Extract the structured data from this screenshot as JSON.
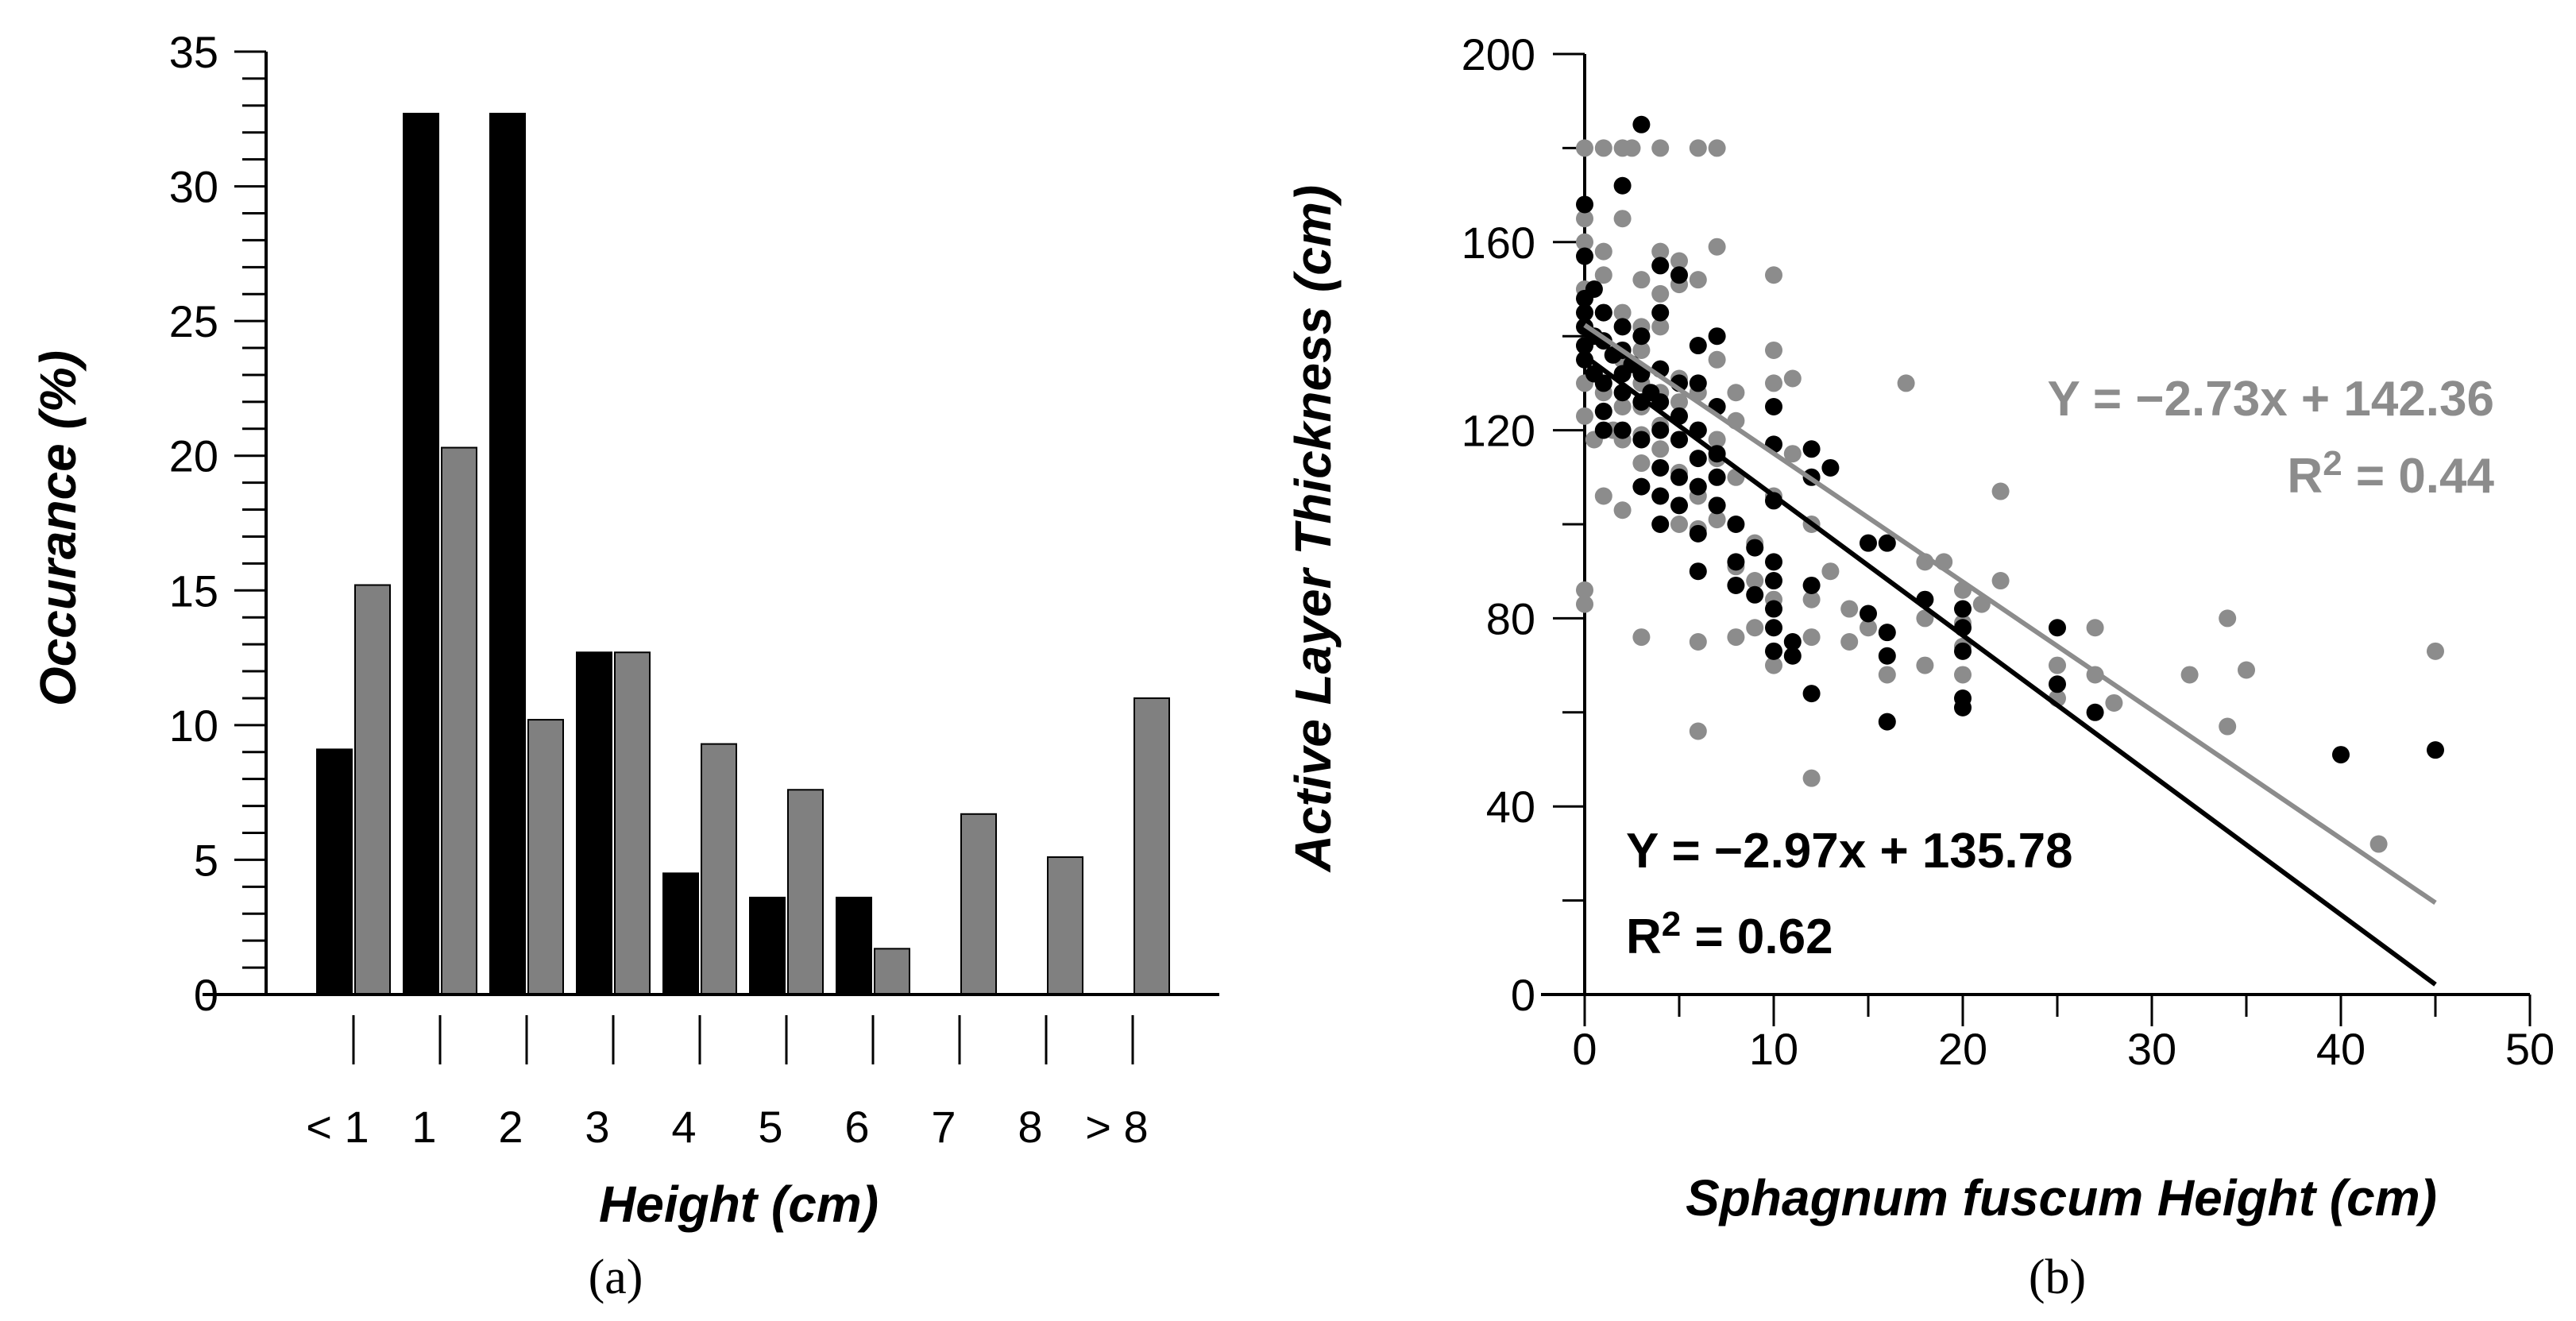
{
  "chart_data": [
    {
      "type": "bar",
      "panel_label": "(a)",
      "xlabel": "Height (cm)",
      "ylabel": "Occurance (%)",
      "ylim": [
        0,
        35
      ],
      "y_ticks": [
        "0",
        "5",
        "10",
        "15",
        "20",
        "25",
        "30",
        "35"
      ],
      "categories": [
        "< 1",
        "1",
        "2",
        "3",
        "4",
        "5",
        "6",
        "7",
        "8",
        "> 8"
      ],
      "series": [
        {
          "name": "series-black",
          "color": "#000000",
          "values": [
            9.1,
            32.7,
            32.7,
            12.7,
            4.5,
            3.6,
            3.6,
            0,
            0,
            0
          ]
        },
        {
          "name": "series-gray",
          "color": "#808080",
          "values": [
            15.2,
            20.3,
            10.2,
            12.7,
            9.3,
            7.6,
            1.7,
            6.7,
            5.1,
            11.0
          ]
        }
      ]
    },
    {
      "type": "scatter",
      "panel_label": "(b)",
      "xlabel": "Sphagnum fuscum Height (cm)",
      "ylabel": "Active Layer Thickness (cm)",
      "xlim": [
        0,
        50
      ],
      "ylim": [
        0,
        200
      ],
      "x_ticks": [
        "0",
        "10",
        "20",
        "30",
        "40",
        "50"
      ],
      "y_ticks": [
        "0",
        "40",
        "80",
        "120",
        "160",
        "200"
      ],
      "series": [
        {
          "name": "black",
          "color": "#000000",
          "equation": "Y = −2.97x + 135.78",
          "r2_prefix": "R",
          "r2_exp": "2",
          "r2_value": " = 0.62",
          "fit": {
            "slope": -2.97,
            "intercept": 135.78,
            "x_range": [
              0,
              45
            ]
          },
          "points": [
            [
              0,
              168
            ],
            [
              0,
              157
            ],
            [
              0,
              148
            ],
            [
              0,
              145
            ],
            [
              0,
              142
            ],
            [
              0,
              138
            ],
            [
              0,
              135
            ],
            [
              0.5,
              150
            ],
            [
              0.5,
              140
            ],
            [
              0.5,
              132
            ],
            [
              1,
              145
            ],
            [
              1,
              139
            ],
            [
              1,
              130
            ],
            [
              1,
              124
            ],
            [
              1,
              120
            ],
            [
              1.5,
              136
            ],
            [
              2,
              172
            ],
            [
              2,
              142
            ],
            [
              2,
              137
            ],
            [
              2,
              132
            ],
            [
              2,
              128
            ],
            [
              2,
              120
            ],
            [
              2.5,
              134
            ],
            [
              3,
              185
            ],
            [
              3,
              140
            ],
            [
              3,
              132
            ],
            [
              3,
              126
            ],
            [
              3,
              118
            ],
            [
              3,
              108
            ],
            [
              3.5,
              128
            ],
            [
              4,
              155
            ],
            [
              4,
              145
            ],
            [
              4,
              133
            ],
            [
              4,
              126
            ],
            [
              4,
              120
            ],
            [
              4,
              112
            ],
            [
              4,
              106
            ],
            [
              4,
              100
            ],
            [
              5,
              153
            ],
            [
              5,
              130
            ],
            [
              5,
              123
            ],
            [
              5,
              118
            ],
            [
              5,
              110
            ],
            [
              5,
              104
            ],
            [
              6,
              138
            ],
            [
              6,
              130
            ],
            [
              6,
              120
            ],
            [
              6,
              114
            ],
            [
              6,
              108
            ],
            [
              6,
              98
            ],
            [
              6,
              90
            ],
            [
              7,
              140
            ],
            [
              7,
              125
            ],
            [
              7,
              115
            ],
            [
              7,
              110
            ],
            [
              7,
              104
            ],
            [
              8,
              100
            ],
            [
              8,
              92
            ],
            [
              8,
              87
            ],
            [
              9,
              85
            ],
            [
              9,
              95
            ],
            [
              10,
              125
            ],
            [
              10,
              117
            ],
            [
              10,
              105
            ],
            [
              10,
              92
            ],
            [
              10,
              88
            ],
            [
              10,
              82
            ],
            [
              10,
              78
            ],
            [
              10,
              73
            ],
            [
              11,
              75
            ],
            [
              11,
              72
            ],
            [
              12,
              116
            ],
            [
              12,
              110
            ],
            [
              12,
              87
            ],
            [
              12,
              64
            ],
            [
              13,
              112
            ],
            [
              15,
              96
            ],
            [
              15,
              81
            ],
            [
              16,
              96
            ],
            [
              16,
              77
            ],
            [
              16,
              72
            ],
            [
              16,
              58
            ],
            [
              18,
              84
            ],
            [
              20,
              82
            ],
            [
              20,
              78
            ],
            [
              20,
              73
            ],
            [
              20,
              63
            ],
            [
              20,
              61
            ],
            [
              25,
              78
            ],
            [
              25,
              66
            ],
            [
              27,
              60
            ],
            [
              40,
              51
            ],
            [
              45,
              52
            ]
          ]
        },
        {
          "name": "gray",
          "color": "#8c8c8c",
          "equation": "Y = −2.73x + 142.36",
          "r2_prefix": "R",
          "r2_exp": "2",
          "r2_value": " = 0.44",
          "fit": {
            "slope": -2.73,
            "intercept": 142.36,
            "x_range": [
              0,
              45
            ]
          },
          "points": [
            [
              0,
              180
            ],
            [
              0,
              165
            ],
            [
              0,
              160
            ],
            [
              0,
              150
            ],
            [
              0,
              138
            ],
            [
              0,
              130
            ],
            [
              0,
              123
            ],
            [
              0,
              86
            ],
            [
              0,
              83
            ],
            [
              0.5,
              118
            ],
            [
              1,
              180
            ],
            [
              1,
              158
            ],
            [
              1,
              153
            ],
            [
              1,
              145
            ],
            [
              1,
              128
            ],
            [
              1,
              106
            ],
            [
              1.5,
              120
            ],
            [
              2,
              180
            ],
            [
              2,
              165
            ],
            [
              2,
              145
            ],
            [
              2,
              135
            ],
            [
              2,
              125
            ],
            [
              2,
              118
            ],
            [
              2,
              103
            ],
            [
              2.5,
              180
            ],
            [
              3,
              152
            ],
            [
              3,
              142
            ],
            [
              3,
              137
            ],
            [
              3,
              130
            ],
            [
              3,
              125
            ],
            [
              3,
              119
            ],
            [
              3,
              113
            ],
            [
              3,
              76
            ],
            [
              4,
              180
            ],
            [
              4,
              158
            ],
            [
              4,
              149
            ],
            [
              4,
              142
            ],
            [
              4,
              133
            ],
            [
              4,
              128
            ],
            [
              4,
              121
            ],
            [
              4,
              116
            ],
            [
              5,
              156
            ],
            [
              5,
              151
            ],
            [
              5,
              131
            ],
            [
              5,
              126
            ],
            [
              5,
              118
            ],
            [
              5,
              111
            ],
            [
              5,
              100
            ],
            [
              6,
              180
            ],
            [
              6,
              152
            ],
            [
              6,
              128
            ],
            [
              6,
              120
            ],
            [
              6,
              106
            ],
            [
              6,
              99
            ],
            [
              6,
              75
            ],
            [
              6,
              56
            ],
            [
              7,
              180
            ],
            [
              7,
              159
            ],
            [
              7,
              135
            ],
            [
              7,
              118
            ],
            [
              7,
              114
            ],
            [
              7,
              101
            ],
            [
              8,
              128
            ],
            [
              8,
              122
            ],
            [
              8,
              110
            ],
            [
              8,
              91
            ],
            [
              8,
              76
            ],
            [
              9,
              96
            ],
            [
              9,
              88
            ],
            [
              9,
              78
            ],
            [
              10,
              153
            ],
            [
              10,
              137
            ],
            [
              10,
              130
            ],
            [
              10,
              106
            ],
            [
              10,
              84
            ],
            [
              10,
              70
            ],
            [
              11,
              131
            ],
            [
              11,
              115
            ],
            [
              12,
              100
            ],
            [
              12,
              84
            ],
            [
              12,
              76
            ],
            [
              12,
              46
            ],
            [
              13,
              90
            ],
            [
              14,
              82
            ],
            [
              14,
              75
            ],
            [
              15,
              78
            ],
            [
              16,
              68
            ],
            [
              17,
              130
            ],
            [
              18,
              92
            ],
            [
              18,
              80
            ],
            [
              18,
              70
            ],
            [
              19,
              92
            ],
            [
              20,
              86
            ],
            [
              20,
              79
            ],
            [
              20,
              74
            ],
            [
              20,
              68
            ],
            [
              21,
              83
            ],
            [
              22,
              107
            ],
            [
              22,
              88
            ],
            [
              25,
              70
            ],
            [
              25,
              63
            ],
            [
              27,
              78
            ],
            [
              27,
              68
            ],
            [
              28,
              62
            ],
            [
              32,
              68
            ],
            [
              34,
              80
            ],
            [
              34,
              57
            ],
            [
              35,
              69
            ],
            [
              42,
              32
            ],
            [
              45,
              73
            ]
          ]
        }
      ]
    }
  ]
}
